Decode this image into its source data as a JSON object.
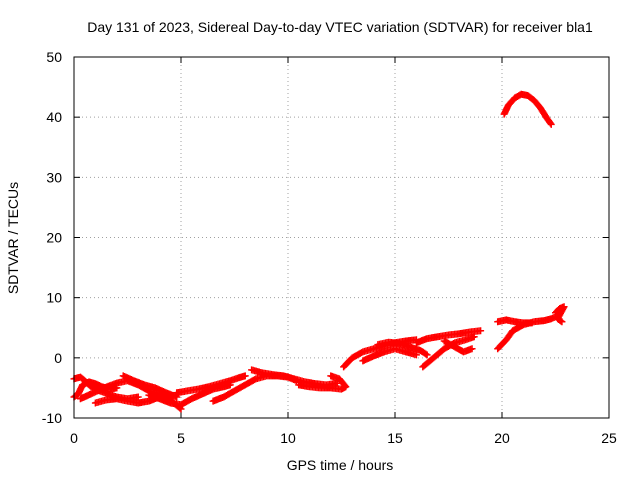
{
  "chart_data": {
    "type": "scatter",
    "title": "Day 131 of 2023, Sidereal Day-to-day VTEC variation (SDTVAR) for receiver bla1",
    "xlabel": "GPS time / hours",
    "ylabel": "SDTVAR / TECUs",
    "xlim": [
      0,
      25
    ],
    "ylim": [
      -10,
      50
    ],
    "xticks": [
      0,
      5,
      10,
      15,
      20,
      25
    ],
    "yticks": [
      -10,
      0,
      10,
      20,
      30,
      40,
      50
    ],
    "grid": true,
    "marker": "plus",
    "color": "#ff0000",
    "series": [
      {
        "name": "SDTVAR",
        "segments": [
          [
            [
              0.0,
              -6.5
            ],
            [
              0.2,
              -6.0
            ],
            [
              0.4,
              -4.5
            ],
            [
              0.7,
              -4.0
            ],
            [
              1.0,
              -4.3
            ],
            [
              1.3,
              -4.8
            ],
            [
              1.7,
              -5.2
            ],
            [
              2.0,
              -5.0
            ]
          ],
          [
            [
              0.0,
              -3.5
            ],
            [
              0.3,
              -3.2
            ],
            [
              0.5,
              -3.8
            ],
            [
              0.8,
              -4.8
            ],
            [
              1.2,
              -5.5
            ],
            [
              1.6,
              -6.0
            ],
            [
              2.0,
              -6.5
            ],
            [
              2.5,
              -6.8
            ],
            [
              3.0,
              -6.5
            ]
          ],
          [
            [
              0.3,
              -6.8
            ],
            [
              0.8,
              -6.0
            ],
            [
              1.4,
              -5.0
            ],
            [
              2.0,
              -4.2
            ],
            [
              2.5,
              -3.8
            ],
            [
              3.0,
              -4.5
            ],
            [
              3.5,
              -5.5
            ],
            [
              4.0,
              -6.0
            ],
            [
              4.5,
              -6.5
            ]
          ],
          [
            [
              1.0,
              -7.5
            ],
            [
              1.5,
              -7.0
            ],
            [
              2.0,
              -6.8
            ],
            [
              2.5,
              -7.2
            ],
            [
              3.0,
              -7.5
            ],
            [
              3.5,
              -7.2
            ],
            [
              4.0,
              -6.5
            ],
            [
              4.5,
              -7.0
            ],
            [
              5.0,
              -8.5
            ]
          ],
          [
            [
              2.3,
              -3.0
            ],
            [
              2.8,
              -3.8
            ],
            [
              3.3,
              -4.5
            ],
            [
              3.8,
              -5.0
            ],
            [
              4.3,
              -5.8
            ],
            [
              4.8,
              -6.5
            ]
          ],
          [
            [
              3.5,
              -6.2
            ],
            [
              4.0,
              -6.8
            ],
            [
              4.5,
              -7.5
            ],
            [
              5.0,
              -7.8
            ],
            [
              5.5,
              -6.8
            ],
            [
              6.0,
              -6.0
            ],
            [
              6.5,
              -5.2
            ],
            [
              7.0,
              -4.8
            ],
            [
              7.3,
              -4.5
            ]
          ],
          [
            [
              4.8,
              -5.8
            ],
            [
              5.3,
              -5.5
            ],
            [
              5.8,
              -5.2
            ],
            [
              6.3,
              -4.8
            ],
            [
              6.8,
              -4.3
            ],
            [
              7.3,
              -3.8
            ],
            [
              7.7,
              -3.3
            ],
            [
              8.0,
              -3.0
            ]
          ],
          [
            [
              6.5,
              -7.2
            ],
            [
              7.0,
              -6.5
            ],
            [
              7.5,
              -5.5
            ],
            [
              8.0,
              -4.5
            ],
            [
              8.5,
              -3.5
            ],
            [
              9.0,
              -3.0
            ],
            [
              9.5,
              -3.0
            ],
            [
              10.0,
              -3.2
            ],
            [
              10.4,
              -3.8
            ]
          ],
          [
            [
              8.3,
              -2.0
            ],
            [
              8.8,
              -2.5
            ],
            [
              9.3,
              -2.8
            ],
            [
              9.8,
              -3.0
            ],
            [
              10.3,
              -3.5
            ],
            [
              10.8,
              -4.0
            ],
            [
              11.3,
              -4.3
            ],
            [
              11.8,
              -4.5
            ],
            [
              12.3,
              -4.2
            ]
          ],
          [
            [
              10.5,
              -4.5
            ],
            [
              11.0,
              -4.8
            ],
            [
              11.5,
              -5.0
            ],
            [
              12.0,
              -5.0
            ],
            [
              12.5,
              -5.2
            ],
            [
              12.7,
              -4.8
            ],
            [
              12.4,
              -3.5
            ],
            [
              12.0,
              -3.0
            ]
          ],
          [
            [
              12.6,
              -1.5
            ],
            [
              13.0,
              0.0
            ],
            [
              13.5,
              1.0
            ],
            [
              14.0,
              1.5
            ],
            [
              14.5,
              2.0
            ],
            [
              15.0,
              2.5
            ],
            [
              15.5,
              2.8
            ],
            [
              16.0,
              3.0
            ]
          ],
          [
            [
              13.5,
              -0.5
            ],
            [
              14.0,
              0.3
            ],
            [
              14.5,
              1.0
            ],
            [
              15.0,
              1.5
            ],
            [
              15.5,
              1.0
            ],
            [
              16.0,
              0.5
            ]
          ],
          [
            [
              14.2,
              2.2
            ],
            [
              14.7,
              2.6
            ],
            [
              15.2,
              2.4
            ],
            [
              15.7,
              1.8
            ],
            [
              16.2,
              1.2
            ],
            [
              16.5,
              0.5
            ]
          ],
          [
            [
              16.0,
              2.5
            ],
            [
              16.5,
              3.2
            ],
            [
              17.0,
              3.5
            ],
            [
              17.5,
              3.8
            ],
            [
              18.0,
              4.0
            ],
            [
              18.5,
              4.3
            ],
            [
              19.0,
              4.5
            ]
          ],
          [
            [
              16.3,
              -1.5
            ],
            [
              16.8,
              0.0
            ],
            [
              17.3,
              1.5
            ],
            [
              17.8,
              2.5
            ],
            [
              18.3,
              3.0
            ],
            [
              18.7,
              3.5
            ]
          ],
          [
            [
              17.3,
              2.8
            ],
            [
              17.8,
              1.8
            ],
            [
              18.2,
              1.0
            ],
            [
              18.6,
              1.5
            ]
          ],
          [
            [
              19.8,
              1.5
            ],
            [
              20.2,
              3.0
            ],
            [
              20.5,
              4.5
            ],
            [
              21.0,
              5.5
            ],
            [
              21.5,
              6.0
            ],
            [
              22.0,
              6.2
            ],
            [
              22.3,
              6.5
            ],
            [
              22.5,
              6.8
            ]
          ],
          [
            [
              19.8,
              6.0
            ],
            [
              20.2,
              6.3
            ],
            [
              20.6,
              6.0
            ],
            [
              21.0,
              5.8
            ],
            [
              21.4,
              5.8
            ]
          ],
          [
            [
              22.5,
              7.5
            ],
            [
              22.7,
              8.2
            ],
            [
              22.9,
              8.5
            ],
            [
              22.6,
              6.5
            ],
            [
              22.8,
              6.0
            ]
          ],
          [
            [
              20.1,
              40.5
            ],
            [
              20.3,
              42.0
            ],
            [
              20.6,
              43.2
            ],
            [
              20.9,
              43.8
            ],
            [
              21.2,
              43.6
            ],
            [
              21.5,
              42.8
            ],
            [
              21.8,
              41.5
            ],
            [
              22.1,
              39.8
            ],
            [
              22.3,
              38.8
            ]
          ]
        ]
      }
    ]
  }
}
